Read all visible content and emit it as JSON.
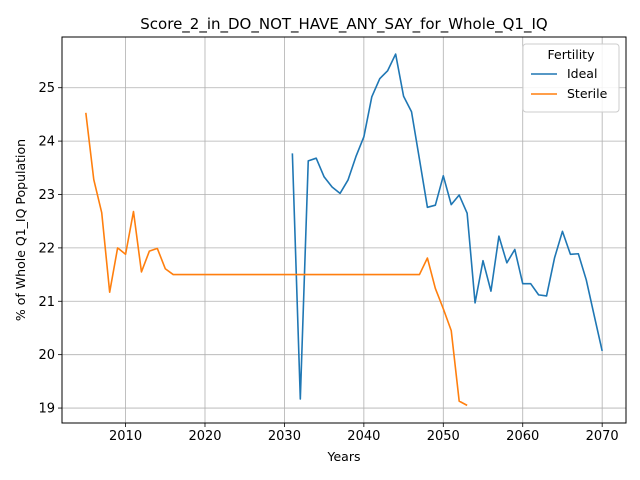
{
  "chart_data": {
    "type": "line",
    "title": "Score_2_in_DO_NOT_HAVE_ANY_SAY_for_Whole_Q1_IQ",
    "xlabel": "Years",
    "ylabel": "% of Whole Q1_IQ Population",
    "xlim": [
      2002,
      2073
    ],
    "ylim": [
      18.72,
      25.95
    ],
    "xticks": [
      2010,
      2020,
      2030,
      2040,
      2050,
      2060,
      2070
    ],
    "yticks": [
      19,
      20,
      21,
      22,
      23,
      24,
      25
    ],
    "grid": true,
    "legend": {
      "title": "Fertility",
      "position": "top-right"
    },
    "series": [
      {
        "name": "Ideal",
        "color": "#1f77b4",
        "x": [
          2031,
          2032,
          2033,
          2034,
          2035,
          2036,
          2037,
          2038,
          2039,
          2040,
          2041,
          2042,
          2043,
          2044,
          2045,
          2046,
          2047,
          2048,
          2049,
          2050,
          2051,
          2052,
          2053,
          2054,
          2055,
          2056,
          2057,
          2058,
          2059,
          2060,
          2061,
          2062,
          2063,
          2064,
          2065,
          2066,
          2067,
          2068,
          2069,
          2070
        ],
        "y": [
          23.77,
          19.17,
          23.63,
          23.68,
          23.33,
          23.14,
          23.02,
          23.27,
          23.71,
          24.08,
          24.83,
          25.17,
          25.32,
          25.63,
          24.84,
          24.55,
          23.66,
          22.76,
          22.8,
          23.35,
          22.81,
          22.99,
          22.65,
          20.97,
          21.76,
          21.19,
          22.22,
          21.72,
          21.97,
          21.33,
          21.33,
          21.12,
          21.1,
          21.81,
          22.31,
          21.88,
          21.89,
          21.4,
          20.73,
          20.07
        ]
      },
      {
        "name": "Sterile",
        "color": "#ff7f0e",
        "x": [
          2005,
          2006,
          2007,
          2008,
          2009,
          2010,
          2011,
          2012,
          2013,
          2014,
          2015,
          2016,
          2017,
          2018,
          2019,
          2020,
          2021,
          2022,
          2023,
          2024,
          2025,
          2026,
          2027,
          2028,
          2029,
          2030,
          2031,
          2032,
          2033,
          2034,
          2035,
          2036,
          2037,
          2038,
          2039,
          2040,
          2041,
          2042,
          2043,
          2044,
          2045,
          2046,
          2047,
          2048,
          2049,
          2050,
          2051,
          2052,
          2053
        ],
        "y": [
          24.53,
          23.28,
          22.66,
          21.17,
          22.0,
          21.88,
          22.68,
          21.55,
          21.94,
          21.99,
          21.61,
          21.5,
          21.5,
          21.5,
          21.5,
          21.5,
          21.5,
          21.5,
          21.5,
          21.5,
          21.5,
          21.5,
          21.5,
          21.5,
          21.5,
          21.5,
          21.5,
          21.5,
          21.5,
          21.5,
          21.5,
          21.5,
          21.5,
          21.5,
          21.5,
          21.5,
          21.5,
          21.5,
          21.5,
          21.5,
          21.5,
          21.5,
          21.5,
          21.81,
          21.24,
          20.86,
          20.45,
          19.13,
          19.05
        ]
      }
    ]
  }
}
